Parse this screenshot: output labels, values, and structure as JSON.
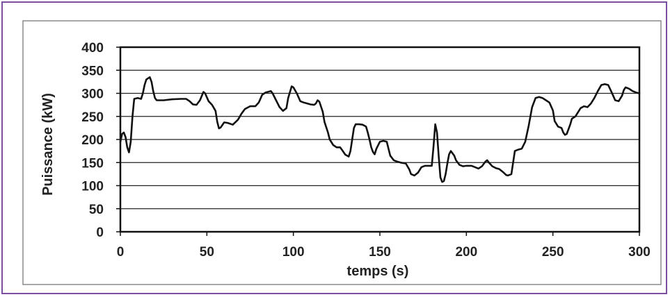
{
  "colors": {
    "frame_border": "#7b4ea0",
    "chart_border": "#8a8a8a",
    "plot_border": "#111111",
    "gridline": "#222222",
    "series_line": "#111111",
    "text": "#222222"
  },
  "chart_data": {
    "type": "line",
    "xlabel": "temps (s)",
    "ylabel": "Puissance (kW)",
    "xlim": [
      0,
      300
    ],
    "ylim": [
      0,
      400
    ],
    "x_ticks": [
      0,
      50,
      100,
      150,
      200,
      250,
      300
    ],
    "y_ticks": [
      0,
      50,
      100,
      150,
      200,
      250,
      300,
      350,
      400
    ],
    "grid": "horizontal",
    "legend": "none",
    "series": [
      {
        "points": [
          [
            0,
            195
          ],
          [
            1,
            212
          ],
          [
            2,
            215
          ],
          [
            3,
            205
          ],
          [
            4,
            183
          ],
          [
            5,
            172
          ],
          [
            6,
            195
          ],
          [
            7,
            250
          ],
          [
            8,
            288
          ],
          [
            10,
            290
          ],
          [
            12,
            288
          ],
          [
            13,
            300
          ],
          [
            14,
            318
          ],
          [
            15,
            330
          ],
          [
            17,
            335
          ],
          [
            18,
            325
          ],
          [
            19,
            305
          ],
          [
            20,
            290
          ],
          [
            21,
            285
          ],
          [
            25,
            285
          ],
          [
            30,
            287
          ],
          [
            35,
            288
          ],
          [
            38,
            288
          ],
          [
            40,
            283
          ],
          [
            42,
            276
          ],
          [
            44,
            275
          ],
          [
            46,
            285
          ],
          [
            48,
            303
          ],
          [
            49,
            300
          ],
          [
            51,
            283
          ],
          [
            53,
            275
          ],
          [
            55,
            262
          ],
          [
            56,
            238
          ],
          [
            57,
            224
          ],
          [
            58,
            226
          ],
          [
            60,
            237
          ],
          [
            62,
            236
          ],
          [
            65,
            232
          ],
          [
            68,
            243
          ],
          [
            70,
            256
          ],
          [
            72,
            266
          ],
          [
            75,
            272
          ],
          [
            78,
            272
          ],
          [
            80,
            280
          ],
          [
            82,
            297
          ],
          [
            84,
            302
          ],
          [
            87,
            305
          ],
          [
            88,
            300
          ],
          [
            90,
            285
          ],
          [
            92,
            270
          ],
          [
            94,
            262
          ],
          [
            96,
            268
          ],
          [
            97,
            290
          ],
          [
            99,
            315
          ],
          [
            100,
            313
          ],
          [
            102,
            300
          ],
          [
            104,
            283
          ],
          [
            106,
            280
          ],
          [
            108,
            278
          ],
          [
            110,
            276
          ],
          [
            112,
            275
          ],
          [
            113,
            278
          ],
          [
            114,
            285
          ],
          [
            115,
            282
          ],
          [
            117,
            260
          ],
          [
            118,
            238
          ],
          [
            120,
            215
          ],
          [
            121,
            200
          ],
          [
            123,
            188
          ],
          [
            125,
            183
          ],
          [
            127,
            183
          ],
          [
            128,
            178
          ],
          [
            130,
            167
          ],
          [
            132,
            163
          ],
          [
            133,
            175
          ],
          [
            134,
            200
          ],
          [
            135,
            225
          ],
          [
            136,
            233
          ],
          [
            138,
            233
          ],
          [
            140,
            232
          ],
          [
            142,
            228
          ],
          [
            143,
            215
          ],
          [
            144,
            200
          ],
          [
            145,
            183
          ],
          [
            146,
            173
          ],
          [
            147,
            168
          ],
          [
            148,
            180
          ],
          [
            150,
            195
          ],
          [
            152,
            197
          ],
          [
            154,
            195
          ],
          [
            155,
            180
          ],
          [
            156,
            165
          ],
          [
            158,
            155
          ],
          [
            160,
            152
          ],
          [
            162,
            150
          ],
          [
            165,
            148
          ],
          [
            167,
            135
          ],
          [
            168,
            125
          ],
          [
            170,
            122
          ],
          [
            172,
            128
          ],
          [
            174,
            140
          ],
          [
            176,
            143
          ],
          [
            178,
            143
          ],
          [
            180,
            143
          ],
          [
            181,
            185
          ],
          [
            182,
            233
          ],
          [
            183,
            215
          ],
          [
            184,
            165
          ],
          [
            185,
            118
          ],
          [
            186,
            108
          ],
          [
            187,
            110
          ],
          [
            188,
            125
          ],
          [
            189,
            148
          ],
          [
            190,
            168
          ],
          [
            191,
            175
          ],
          [
            193,
            165
          ],
          [
            194,
            155
          ],
          [
            196,
            145
          ],
          [
            198,
            142
          ],
          [
            200,
            143
          ],
          [
            203,
            143
          ],
          [
            205,
            140
          ],
          [
            207,
            137
          ],
          [
            209,
            142
          ],
          [
            211,
            152
          ],
          [
            212,
            155
          ],
          [
            213,
            150
          ],
          [
            215,
            142
          ],
          [
            217,
            138
          ],
          [
            219,
            136
          ],
          [
            221,
            130
          ],
          [
            223,
            123
          ],
          [
            224,
            122
          ],
          [
            226,
            125
          ],
          [
            227,
            150
          ],
          [
            228,
            175
          ],
          [
            230,
            178
          ],
          [
            232,
            180
          ],
          [
            234,
            195
          ],
          [
            236,
            230
          ],
          [
            238,
            270
          ],
          [
            240,
            290
          ],
          [
            242,
            292
          ],
          [
            244,
            290
          ],
          [
            246,
            285
          ],
          [
            248,
            280
          ],
          [
            250,
            263
          ],
          [
            251,
            240
          ],
          [
            253,
            228
          ],
          [
            255,
            225
          ],
          [
            256,
            215
          ],
          [
            257,
            210
          ],
          [
            258,
            212
          ],
          [
            260,
            232
          ],
          [
            261,
            245
          ],
          [
            263,
            250
          ],
          [
            266,
            268
          ],
          [
            268,
            272
          ],
          [
            270,
            270
          ],
          [
            272,
            278
          ],
          [
            274,
            290
          ],
          [
            276,
            305
          ],
          [
            278,
            318
          ],
          [
            280,
            320
          ],
          [
            282,
            318
          ],
          [
            284,
            302
          ],
          [
            286,
            285
          ],
          [
            288,
            283
          ],
          [
            290,
            295
          ],
          [
            291,
            307
          ],
          [
            292,
            313
          ],
          [
            294,
            310
          ],
          [
            296,
            305
          ],
          [
            298,
            302
          ],
          [
            300,
            300
          ]
        ]
      }
    ]
  }
}
